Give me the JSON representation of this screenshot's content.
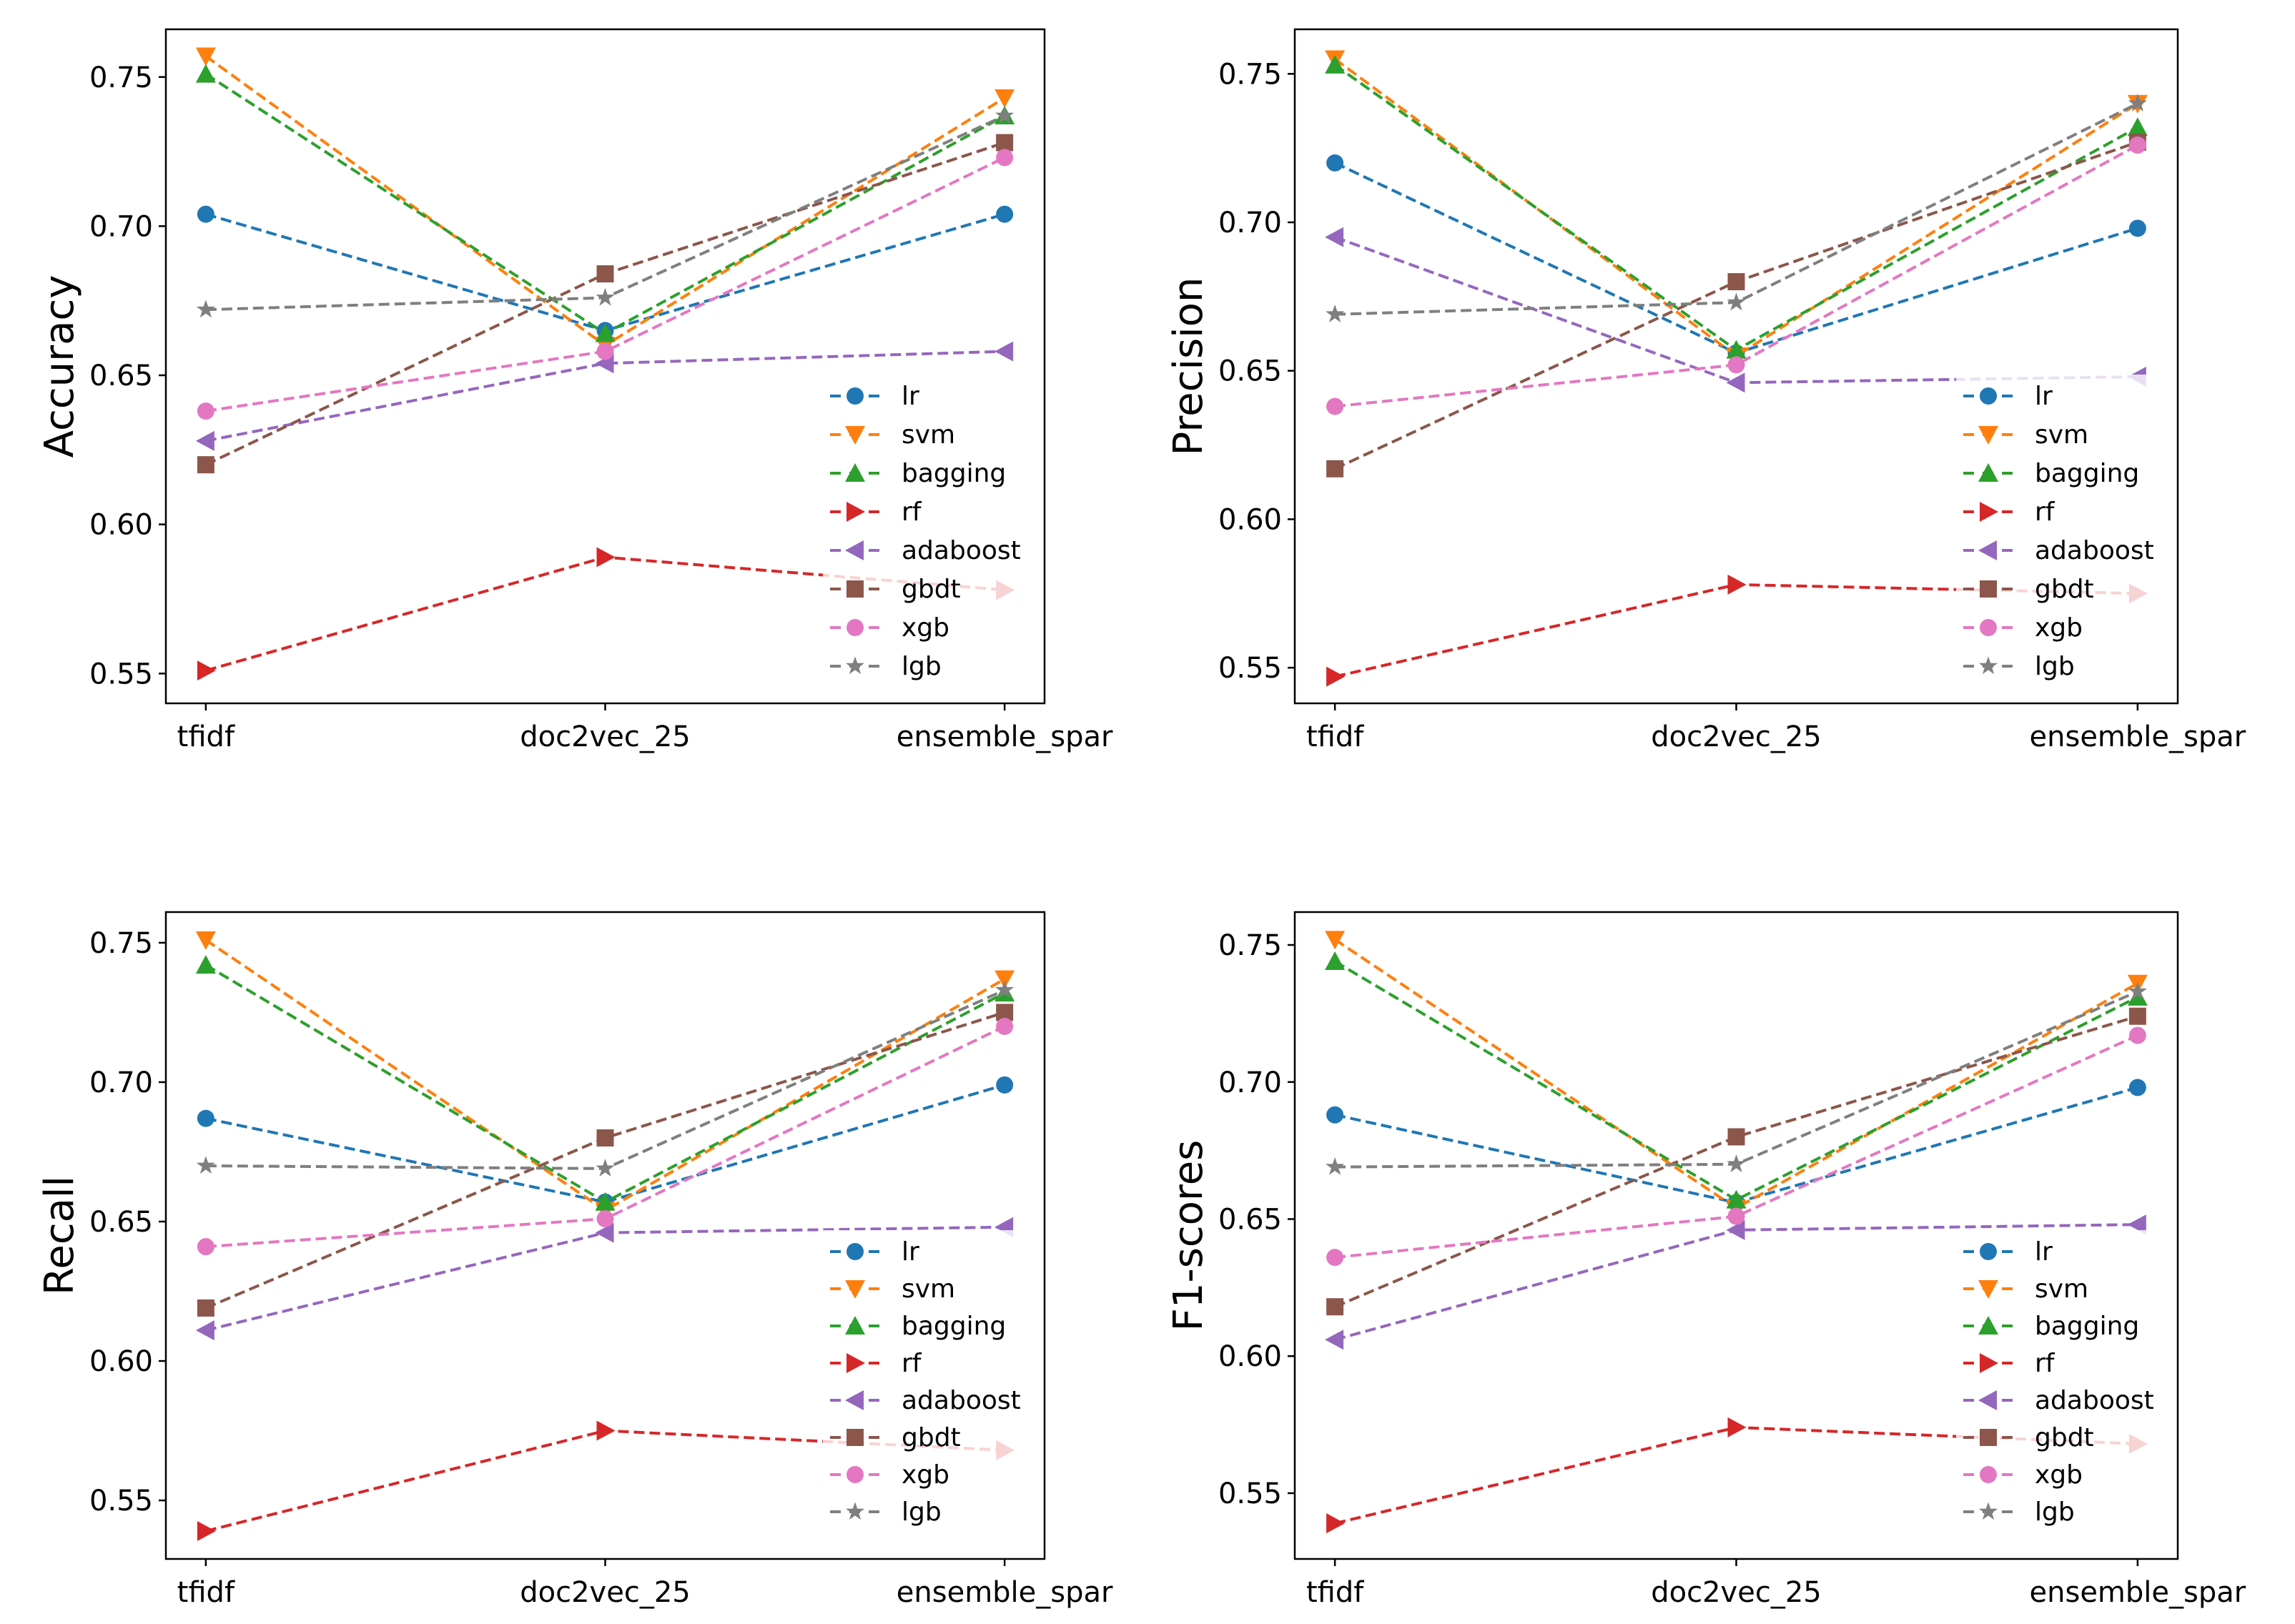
{
  "chart_data": [
    {
      "type": "line",
      "ylabel": "Accuracy",
      "categories": [
        "tfidf",
        "doc2vec_25",
        "ensemble_spar"
      ],
      "ylim": [
        0.54,
        0.766
      ],
      "yticks": [
        "0.55",
        "0.60",
        "0.65",
        "0.70",
        "0.75"
      ],
      "legend": "lower-right",
      "series": [
        {
          "name": "lr",
          "values": [
            0.704,
            0.665,
            0.704
          ]
        },
        {
          "name": "svm",
          "values": [
            0.757,
            0.66,
            0.743
          ]
        },
        {
          "name": "bagging",
          "values": [
            0.751,
            0.664,
            0.737
          ]
        },
        {
          "name": "rf",
          "values": [
            0.551,
            0.589,
            0.578
          ]
        },
        {
          "name": "adaboost",
          "values": [
            0.628,
            0.654,
            0.658
          ]
        },
        {
          "name": "gbdt",
          "values": [
            0.62,
            0.684,
            0.728
          ]
        },
        {
          "name": "xgb",
          "values": [
            0.638,
            0.658,
            0.723
          ]
        },
        {
          "name": "lgb",
          "values": [
            0.672,
            0.676,
            0.737
          ]
        }
      ]
    },
    {
      "type": "line",
      "ylabel": "Precision",
      "categories": [
        "tfidf",
        "doc2vec_25",
        "ensemble_spar"
      ],
      "ylim": [
        0.538,
        0.765
      ],
      "yticks": [
        "0.55",
        "0.60",
        "0.65",
        "0.70",
        "0.75"
      ],
      "legend": "lower-right",
      "series": [
        {
          "name": "lr",
          "values": [
            0.72,
            0.656,
            0.698
          ]
        },
        {
          "name": "svm",
          "values": [
            0.755,
            0.655,
            0.74
          ]
        },
        {
          "name": "bagging",
          "values": [
            0.753,
            0.657,
            0.732
          ]
        },
        {
          "name": "rf",
          "values": [
            0.547,
            0.578,
            0.575
          ]
        },
        {
          "name": "adaboost",
          "values": [
            0.695,
            0.646,
            0.648
          ]
        },
        {
          "name": "gbdt",
          "values": [
            0.617,
            0.68,
            0.727
          ]
        },
        {
          "name": "xgb",
          "values": [
            0.638,
            0.652,
            0.726
          ]
        },
        {
          "name": "lgb",
          "values": [
            0.669,
            0.673,
            0.74
          ]
        }
      ]
    },
    {
      "type": "line",
      "ylabel": "Recall",
      "categories": [
        "tfidf",
        "doc2vec_25",
        "ensemble_spar"
      ],
      "ylim": [
        0.529,
        0.761
      ],
      "yticks": [
        "0.55",
        "0.60",
        "0.65",
        "0.70",
        "0.75"
      ],
      "legend": "lower-right",
      "series": [
        {
          "name": "lr",
          "values": [
            0.687,
            0.657,
            0.699
          ]
        },
        {
          "name": "svm",
          "values": [
            0.751,
            0.654,
            0.737
          ]
        },
        {
          "name": "bagging",
          "values": [
            0.742,
            0.657,
            0.732
          ]
        },
        {
          "name": "rf",
          "values": [
            0.539,
            0.575,
            0.568
          ]
        },
        {
          "name": "adaboost",
          "values": [
            0.611,
            0.646,
            0.648
          ]
        },
        {
          "name": "gbdt",
          "values": [
            0.619,
            0.68,
            0.725
          ]
        },
        {
          "name": "xgb",
          "values": [
            0.641,
            0.651,
            0.72
          ]
        },
        {
          "name": "lgb",
          "values": [
            0.67,
            0.669,
            0.733
          ]
        }
      ]
    },
    {
      "type": "line",
      "ylabel": "F1-scores",
      "categories": [
        "tfidf",
        "doc2vec_25",
        "ensemble_spar"
      ],
      "ylim": [
        0.526,
        0.762
      ],
      "yticks": [
        "0.55",
        "0.60",
        "0.65",
        "0.70",
        "0.75"
      ],
      "legend": "lower-right",
      "series": [
        {
          "name": "lr",
          "values": [
            0.688,
            0.656,
            0.698
          ]
        },
        {
          "name": "svm",
          "values": [
            0.752,
            0.654,
            0.736
          ]
        },
        {
          "name": "bagging",
          "values": [
            0.744,
            0.657,
            0.731
          ]
        },
        {
          "name": "rf",
          "values": [
            0.539,
            0.574,
            0.568
          ]
        },
        {
          "name": "adaboost",
          "values": [
            0.606,
            0.646,
            0.648
          ]
        },
        {
          "name": "gbdt",
          "values": [
            0.618,
            0.68,
            0.724
          ]
        },
        {
          "name": "xgb",
          "values": [
            0.636,
            0.651,
            0.717
          ]
        },
        {
          "name": "lgb",
          "values": [
            0.669,
            0.67,
            0.733
          ]
        }
      ]
    }
  ],
  "styles": {
    "lr": {
      "color": "#1f77b4",
      "marker": "circle"
    },
    "svm": {
      "color": "#ff7f0e",
      "marker": "triangle-down"
    },
    "bagging": {
      "color": "#2ca02c",
      "marker": "triangle-up"
    },
    "rf": {
      "color": "#d62728",
      "marker": "triangle-right"
    },
    "adaboost": {
      "color": "#9467bd",
      "marker": "triangle-left"
    },
    "gbdt": {
      "color": "#8c564b",
      "marker": "square"
    },
    "xgb": {
      "color": "#e377c2",
      "marker": "circle"
    },
    "lgb": {
      "color": "#7f7f7f",
      "marker": "star"
    }
  }
}
